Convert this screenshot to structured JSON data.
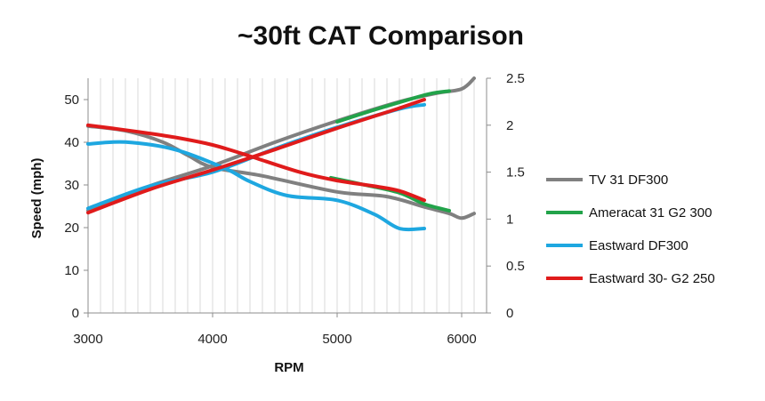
{
  "chart_data": {
    "type": "line",
    "title": "~30ft CAT Comparison",
    "xlabel": "RPM",
    "ylabel": "Speed (mph)",
    "y2label": "",
    "xlim": [
      3000,
      6200
    ],
    "ylim": [
      0,
      55
    ],
    "y2lim": [
      0,
      2.5
    ],
    "xticks": [
      3000,
      4000,
      5000,
      6000
    ],
    "yticks": [
      0,
      10,
      20,
      30,
      40,
      50
    ],
    "y2ticks": [
      "0",
      "0.5",
      "1",
      "1.5",
      "2",
      "2.5"
    ],
    "y2tick_values": [
      0,
      0.5,
      1,
      1.5,
      2,
      2.5
    ],
    "grid": "vertical",
    "legend_position": "right",
    "series": [
      {
        "name": "TV 31 DF300",
        "color": "#808080",
        "speed": [
          [
            3000,
            24
          ],
          [
            3500,
            29.8
          ],
          [
            4000,
            34.5
          ],
          [
            4500,
            40
          ],
          [
            5000,
            45
          ],
          [
            5500,
            49.5
          ],
          [
            5800,
            51.5
          ],
          [
            6000,
            52.5
          ],
          [
            6100,
            55
          ]
        ],
        "secondary": [
          [
            3000,
            1.99
          ],
          [
            3300,
            1.94
          ],
          [
            3600,
            1.82
          ],
          [
            3800,
            1.68
          ],
          [
            4000,
            1.55
          ],
          [
            4400,
            1.46
          ],
          [
            5000,
            1.29
          ],
          [
            5400,
            1.24
          ],
          [
            5700,
            1.13
          ],
          [
            5900,
            1.06
          ],
          [
            6000,
            1.01
          ],
          [
            6100,
            1.06
          ]
        ]
      },
      {
        "name": "Ameracat 31 G2 300",
        "color": "#22a34a",
        "speed": [
          [
            5000,
            44.8
          ],
          [
            5300,
            47.6
          ],
          [
            5600,
            50.2
          ],
          [
            5750,
            51.4
          ],
          [
            5900,
            52
          ]
        ],
        "secondary": [
          [
            4950,
            1.44
          ],
          [
            5200,
            1.37
          ],
          [
            5500,
            1.28
          ],
          [
            5700,
            1.16
          ],
          [
            5900,
            1.09
          ]
        ]
      },
      {
        "name": "Eastward DF300",
        "color": "#1ea7e0",
        "speed": [
          [
            3000,
            24.5
          ],
          [
            3500,
            29.8
          ],
          [
            4000,
            33
          ],
          [
            4500,
            38.5
          ],
          [
            5000,
            43.5
          ],
          [
            5500,
            47.8
          ],
          [
            5700,
            48.8
          ]
        ],
        "secondary": [
          [
            3000,
            1.8
          ],
          [
            3300,
            1.82
          ],
          [
            3700,
            1.74
          ],
          [
            4100,
            1.54
          ],
          [
            4300,
            1.4
          ],
          [
            4600,
            1.25
          ],
          [
            5000,
            1.2
          ],
          [
            5300,
            1.05
          ],
          [
            5500,
            0.9
          ],
          [
            5700,
            0.9
          ]
        ]
      },
      {
        "name": "Eastward 30- G2 250",
        "color": "#e01b1b",
        "speed": [
          [
            3000,
            23.5
          ],
          [
            3500,
            29
          ],
          [
            4000,
            33.5
          ],
          [
            4500,
            38.3
          ],
          [
            5000,
            43.3
          ],
          [
            5500,
            48
          ],
          [
            5700,
            50
          ]
        ],
        "secondary": [
          [
            3000,
            2.0
          ],
          [
            3400,
            1.93
          ],
          [
            3700,
            1.87
          ],
          [
            4000,
            1.79
          ],
          [
            4300,
            1.67
          ],
          [
            4700,
            1.5
          ],
          [
            5000,
            1.41
          ],
          [
            5300,
            1.35
          ],
          [
            5500,
            1.3
          ],
          [
            5700,
            1.2
          ]
        ]
      }
    ]
  }
}
